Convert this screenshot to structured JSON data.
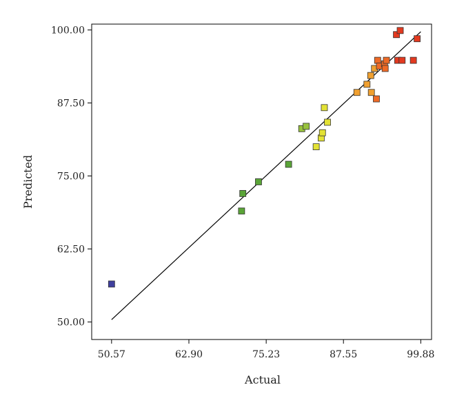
{
  "chart_data": {
    "type": "scatter",
    "title": "",
    "xlabel": "Actual",
    "ylabel": "Predicted",
    "xlim": [
      47.4,
      101.6
    ],
    "ylim": [
      47.0,
      101.0
    ],
    "xticks": [
      "50.57",
      "62.90",
      "75.23",
      "87.55",
      "99.88"
    ],
    "yticks": [
      "50.00",
      "62.50",
      "75.00",
      "87.50",
      "100.00"
    ],
    "grid": false,
    "legend": "none",
    "fit_line": {
      "from": [
        50.57,
        50.4
      ],
      "to": [
        99.88,
        99.7
      ]
    },
    "colors": {
      "blue": "#3f3f9e",
      "green": "#5aa437",
      "lightgreen": "#98c23e",
      "yellow": "#e3e235",
      "orange": "#f0a030",
      "redorange": "#ee6a26",
      "red": "#e33a20"
    },
    "points": [
      {
        "x": 50.57,
        "y": 56.5,
        "c": "blue"
      },
      {
        "x": 71.3,
        "y": 69.0,
        "c": "green"
      },
      {
        "x": 71.5,
        "y": 72.0,
        "c": "green"
      },
      {
        "x": 74.0,
        "y": 74.0,
        "c": "green"
      },
      {
        "x": 78.8,
        "y": 77.0,
        "c": "green"
      },
      {
        "x": 80.9,
        "y": 83.1,
        "c": "lightgreen"
      },
      {
        "x": 81.6,
        "y": 83.5,
        "c": "lightgreen"
      },
      {
        "x": 83.2,
        "y": 80.0,
        "c": "yellow"
      },
      {
        "x": 84.0,
        "y": 81.5,
        "c": "yellow"
      },
      {
        "x": 84.2,
        "y": 82.4,
        "c": "yellow"
      },
      {
        "x": 84.5,
        "y": 86.7,
        "c": "yellow"
      },
      {
        "x": 85.0,
        "y": 84.2,
        "c": "yellow"
      },
      {
        "x": 89.7,
        "y": 89.3,
        "c": "orange"
      },
      {
        "x": 91.3,
        "y": 90.7,
        "c": "orange"
      },
      {
        "x": 91.9,
        "y": 92.2,
        "c": "orange"
      },
      {
        "x": 92.0,
        "y": 89.3,
        "c": "orange"
      },
      {
        "x": 92.5,
        "y": 93.4,
        "c": "orange"
      },
      {
        "x": 92.8,
        "y": 88.2,
        "c": "redorange"
      },
      {
        "x": 93.0,
        "y": 94.8,
        "c": "redorange"
      },
      {
        "x": 93.3,
        "y": 93.8,
        "c": "redorange"
      },
      {
        "x": 94.1,
        "y": 94.2,
        "c": "redorange"
      },
      {
        "x": 94.2,
        "y": 93.4,
        "c": "redorange"
      },
      {
        "x": 94.4,
        "y": 94.8,
        "c": "redorange"
      },
      {
        "x": 96.0,
        "y": 99.2,
        "c": "red"
      },
      {
        "x": 96.2,
        "y": 94.8,
        "c": "red"
      },
      {
        "x": 96.6,
        "y": 99.9,
        "c": "red"
      },
      {
        "x": 96.9,
        "y": 94.8,
        "c": "red"
      },
      {
        "x": 98.7,
        "y": 94.8,
        "c": "red"
      },
      {
        "x": 99.3,
        "y": 98.5,
        "c": "red"
      }
    ]
  }
}
